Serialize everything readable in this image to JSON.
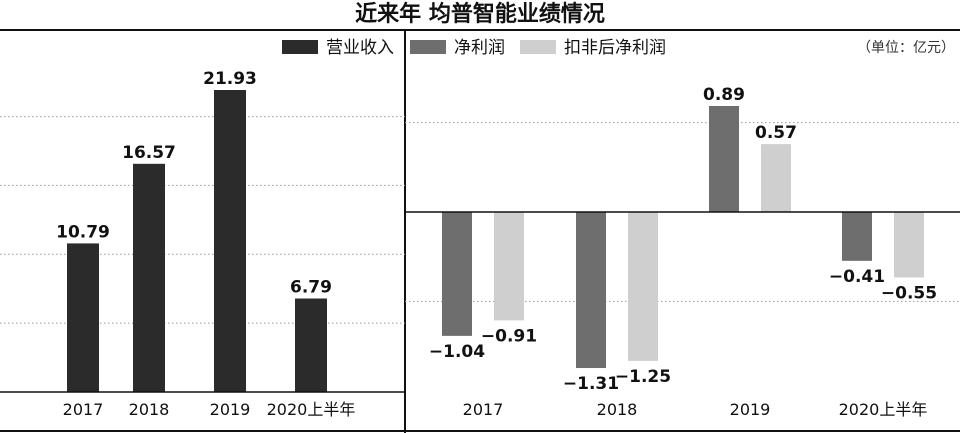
{
  "title": "近来年 均普智能业绩情况",
  "unit_note": "（单位：亿元）",
  "colors": {
    "revenue": "#2b2b2b",
    "net_profit": "#6e6e6e",
    "net_profit_adjusted": "#cfcfcf",
    "grid": "#9a9a9a",
    "axis": "#111111"
  },
  "chart_data": [
    {
      "type": "bar",
      "categories": [
        "2017",
        "2018",
        "2019",
        "2020上半年"
      ],
      "series": [
        {
          "name": "营业收入",
          "values": [
            10.79,
            16.57,
            21.93,
            6.79
          ]
        }
      ],
      "value_labels": [
        "10.79",
        "16.57",
        "21.93",
        "6.79"
      ],
      "ylim": [
        0,
        22
      ],
      "grid": true
    },
    {
      "type": "bar",
      "categories": [
        "2017",
        "2018",
        "2019",
        "2020上半年"
      ],
      "series": [
        {
          "name": "净利润",
          "values": [
            -1.04,
            -1.31,
            0.89,
            -0.41
          ]
        },
        {
          "name": "扣非后净利润",
          "values": [
            -0.91,
            -1.25,
            0.57,
            -0.55
          ]
        }
      ],
      "value_labels": [
        [
          "−1.04",
          "−1.31",
          "0.89",
          "−0.41"
        ],
        [
          "−0.91",
          "−1.25",
          "0.57",
          "−0.55"
        ]
      ],
      "ylim": [
        -1.5,
        1.0
      ],
      "grid": true
    }
  ]
}
